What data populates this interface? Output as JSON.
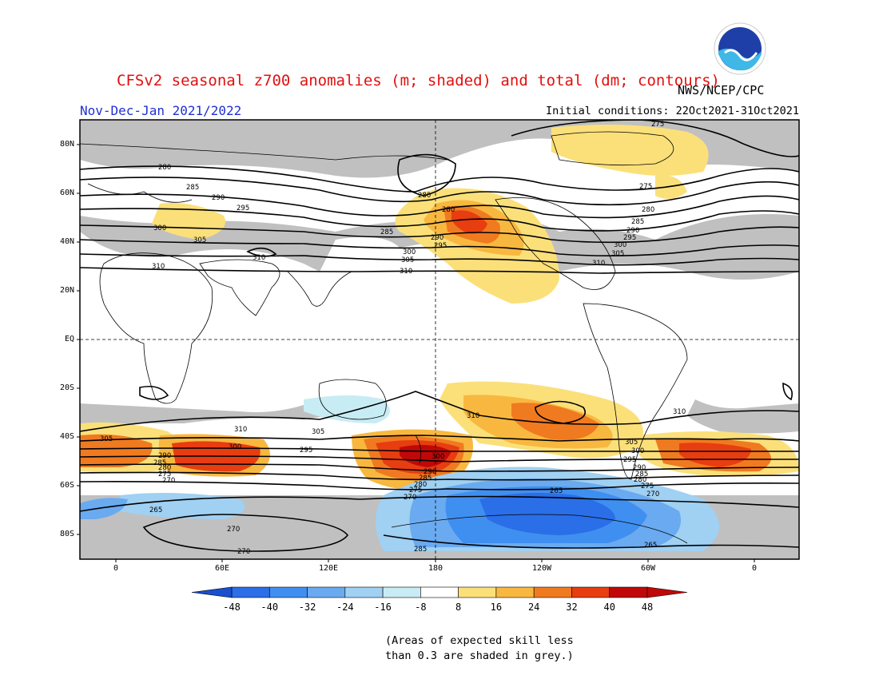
{
  "header": {
    "title": "CFSv2 seasonal z700 anomalies (m; shaded) and total (dm; contours)",
    "agency": "NWS/NCEP/CPC",
    "period": "Nov-Dec-Jan 2021/2022",
    "initial_conditions": "Initial conditions: 22Oct2021-31Oct2021",
    "logo": "noaa-logo"
  },
  "map": {
    "lat_ticks": [
      "80N",
      "60N",
      "40N",
      "20N",
      "EQ",
      "20S",
      "40S",
      "60S",
      "80S"
    ],
    "lon_ticks": [
      "0",
      "60E",
      "120E",
      "180",
      "120W",
      "60W",
      "0"
    ],
    "contour_labels": [
      "275",
      "280",
      "285",
      "290",
      "295",
      "300",
      "305",
      "310",
      "265",
      "270"
    ],
    "note_line1": "(Areas of expected skill less",
    "note_line2": "than 0.3 are shaded in grey.)"
  },
  "colorbar": {
    "labels": [
      "-48",
      "-40",
      "-32",
      "-24",
      "-16",
      "-8",
      "8",
      "16",
      "24",
      "32",
      "40",
      "48"
    ],
    "colors": [
      "#1a4fd0",
      "#2a6ee8",
      "#3f8ff0",
      "#6aaaf0",
      "#a0d0f2",
      "#c8ecf4",
      "#ffffff",
      "#fbe07a",
      "#f8b840",
      "#f07a20",
      "#e83d10",
      "#c00808"
    ]
  }
}
